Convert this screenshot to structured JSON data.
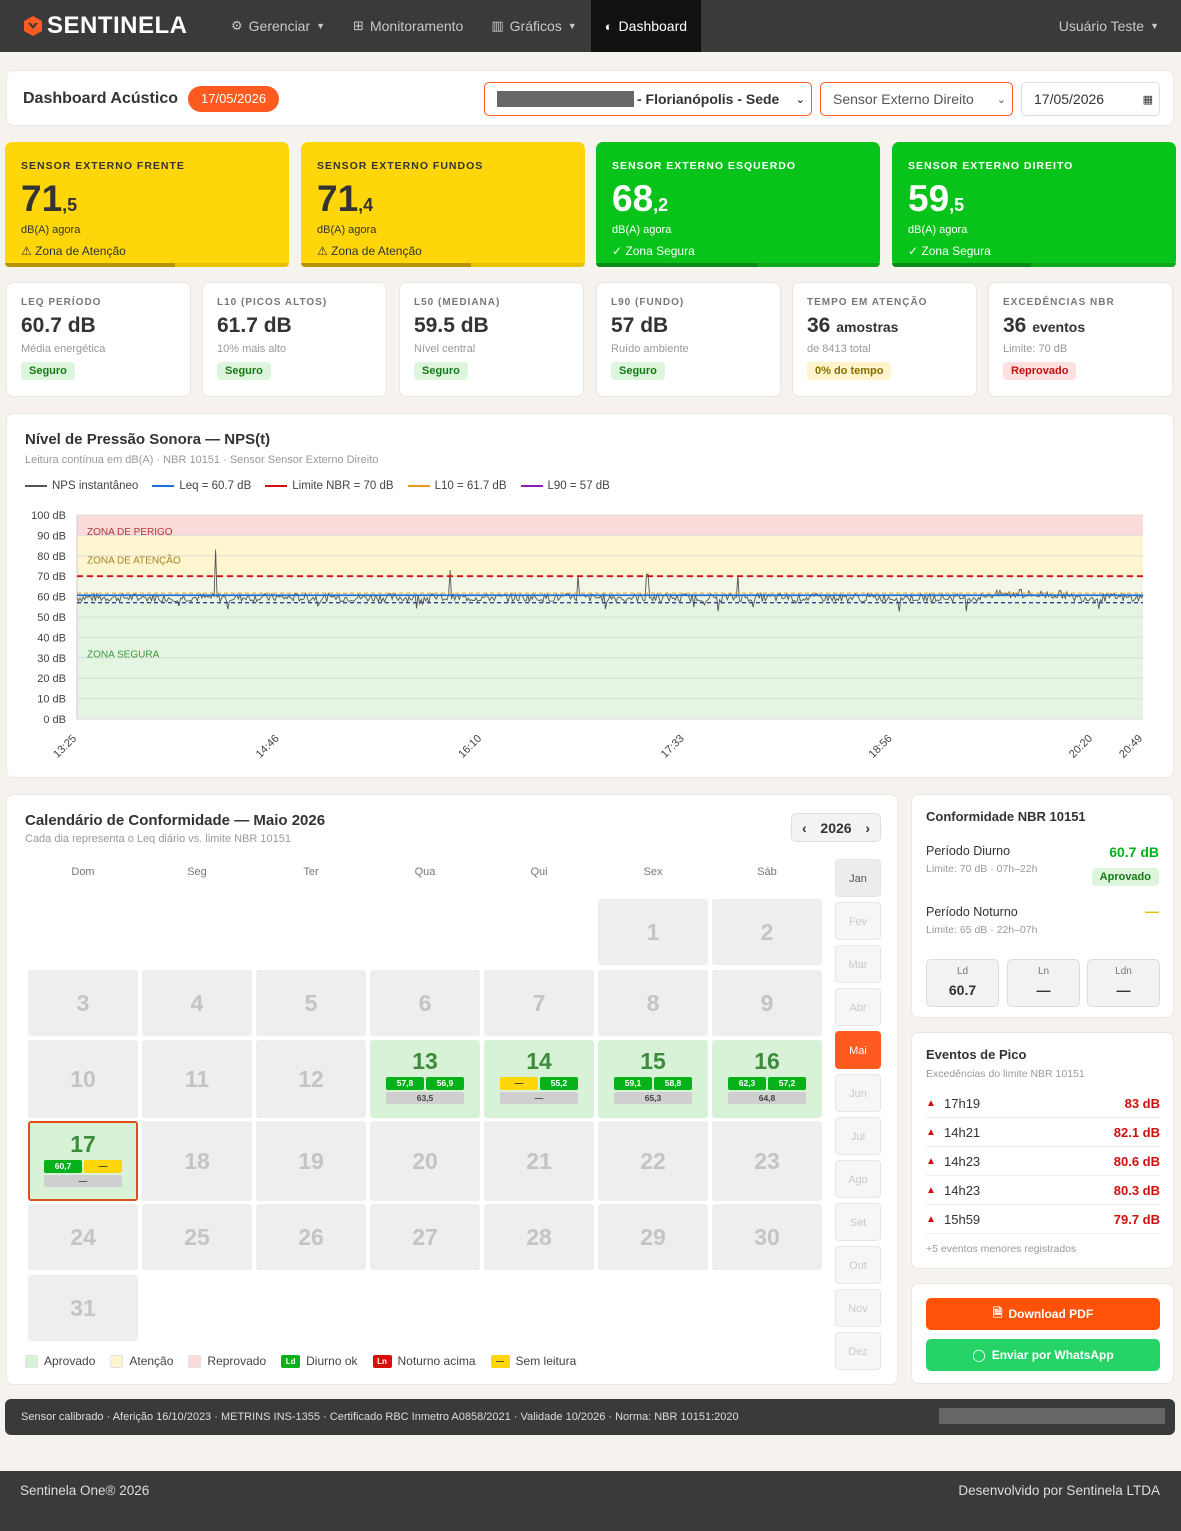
{
  "nav": {
    "brand": "SENTINELA",
    "items": [
      {
        "label": "Gerenciar",
        "icon": "gears-icon",
        "caret": true
      },
      {
        "label": "Monitoramento",
        "icon": "grid-icon",
        "caret": false
      },
      {
        "label": "Gráficos",
        "icon": "bar-chart-icon",
        "caret": true
      },
      {
        "label": "Dashboard",
        "icon": "gauge-icon",
        "caret": false,
        "active": true
      }
    ],
    "user": "Usuário Teste"
  },
  "header": {
    "title": "Dashboard Acústico",
    "date_badge": "17/05/2026",
    "location": "- Florianópolis - Sede",
    "sensor": "Sensor Externo Direito",
    "date": "17/05/2026"
  },
  "sensors": [
    {
      "label": "SENSOR EXTERNO FRENTE",
      "int": "71",
      "dec": ",5",
      "unit": "dB(A) agora",
      "zone": "⚠ Zona de Atenção",
      "color": "yellow",
      "fill": 0.6
    },
    {
      "label": "SENSOR EXTERNO FUNDOS",
      "int": "71",
      "dec": ",4",
      "unit": "dB(A) agora",
      "zone": "⚠ Zona de Atenção",
      "color": "yellow",
      "fill": 0.6
    },
    {
      "label": "SENSOR EXTERNO ESQUERDO",
      "int": "68",
      "dec": ",2",
      "unit": "dB(A) agora",
      "zone": "✓ Zona Segura",
      "color": "green",
      "fill": 0.57
    },
    {
      "label": "SENSOR EXTERNO DIREITO",
      "int": "59",
      "dec": ",5",
      "unit": "dB(A) agora",
      "zone": "✓ Zona Segura",
      "color": "green",
      "fill": 0.49
    }
  ],
  "stats": [
    {
      "label": "LEQ PERÍODO",
      "value": "60.7 dB",
      "small": "",
      "sub": "Média energética",
      "pill": "Seguro",
      "pill_type": "ok"
    },
    {
      "label": "L10 (PICOS ALTOS)",
      "value": "61.7 dB",
      "small": "",
      "sub": "10% mais alto",
      "pill": "Seguro",
      "pill_type": "ok"
    },
    {
      "label": "L50 (MEDIANA)",
      "value": "59.5 dB",
      "small": "",
      "sub": "Nível central",
      "pill": "Seguro",
      "pill_type": "ok"
    },
    {
      "label": "L90 (FUNDO)",
      "value": "57 dB",
      "small": "",
      "sub": "Ruído ambiente",
      "pill": "Seguro",
      "pill_type": "ok"
    },
    {
      "label": "TEMPO EM ATENÇÃO",
      "value": "36",
      "small": "amostras",
      "sub": "de 8413 total",
      "pill": "0% do tempo",
      "pill_type": "warn"
    },
    {
      "label": "EXCEDÊNCIAS NBR",
      "value": "36",
      "small": "eventos",
      "sub": "Limite: 70 dB",
      "pill": "Reprovado",
      "pill_type": "bad"
    }
  ],
  "chart": {
    "title": "Nível de Pressão Sonora — NPS(t)",
    "subtitle": "Leitura contínua em dB(A) · NBR 10151 · Sensor Sensor Externo Direito"
  },
  "chart_data": {
    "type": "line",
    "title": "Nível de Pressão Sonora — NPS(t)",
    "ylim": [
      0,
      100
    ],
    "y_ticks": [
      "0 dB",
      "10 dB",
      "20 dB",
      "30 dB",
      "40 dB",
      "50 dB",
      "60 dB",
      "70 dB",
      "80 dB",
      "90 dB",
      "100 dB"
    ],
    "x_ticks": [
      "13:25",
      "14:46",
      "16:10",
      "17:33",
      "18:56",
      "20:20",
      "20:49"
    ],
    "zones": [
      {
        "name": "ZONA DE PERIGO",
        "from": 90,
        "to": 100,
        "color": "#fbdada"
      },
      {
        "name": "ZONA DE ATENÇÃO",
        "from": 70,
        "to": 90,
        "color": "#fff5cf"
      },
      {
        "name": "ZONA SEGURA",
        "from": 0,
        "to": 60,
        "color": "#e4f5e2"
      }
    ],
    "legend": [
      {
        "name": "NPS instantâneo",
        "color": "#555555"
      },
      {
        "name": "Leq = 60.7 dB",
        "color": "#1a73d9"
      },
      {
        "name": "Limite NBR = 70 dB",
        "color": "#d90f0f"
      },
      {
        "name": "L10 = 61.7 dB",
        "color": "#f09a1a"
      },
      {
        "name": "L90 = 57 dB",
        "color": "#8e1fb5"
      }
    ],
    "leq": 60.7,
    "limit": 70,
    "l10": 61.7,
    "l90": 57,
    "nps_baseline": 59.5,
    "peaks": [
      {
        "t": 0.13,
        "v": 83
      },
      {
        "t": 0.35,
        "v": 73
      },
      {
        "t": 0.47,
        "v": 70.5
      },
      {
        "t": 0.535,
        "v": 71
      },
      {
        "t": 0.62,
        "v": 70.5
      },
      {
        "t": 0.885,
        "v": 63.5
      }
    ]
  },
  "calendar": {
    "title": "Calendário de Conformidade — Maio 2026",
    "subtitle": "Cada dia representa o Leq diário vs. limite NBR 10151",
    "year": "2026",
    "dow": [
      "Dom",
      "Seg",
      "Ter",
      "Qua",
      "Qui",
      "Sex",
      "Sáb"
    ],
    "months": [
      "Jan",
      "Fev",
      "Mar",
      "Abr",
      "Mai",
      "Jun",
      "Jul",
      "Ago",
      "Set",
      "Out",
      "Nov",
      "Dez"
    ],
    "days": {
      "13": {
        "d": "57,8",
        "n": "56,9",
        "ldn": "63,5"
      },
      "14": {
        "d": "—",
        "n": "55,2",
        "ldn": "—"
      },
      "15": {
        "d": "59,1",
        "n": "58,8",
        "ldn": "65,3"
      },
      "16": {
        "d": "62,3",
        "n": "57,2",
        "ldn": "64,8"
      },
      "17": {
        "d": "60,7",
        "n": "—",
        "ldn": "—"
      }
    },
    "legend": [
      {
        "label": "Aprovado",
        "type": "sq",
        "color": "#d8f2d8"
      },
      {
        "label": "Atenção",
        "type": "sq",
        "color": "#fff5cf"
      },
      {
        "label": "Reprovado",
        "type": "sq",
        "color": "#fbdada"
      },
      {
        "label": "Diurno ok",
        "type": "tag",
        "tag": "Ld",
        "color": "#07b11a"
      },
      {
        "label": "Noturno acima",
        "type": "tag",
        "tag": "Ln",
        "color": "#d90f0f"
      },
      {
        "label": "Sem leitura",
        "type": "tag",
        "tag": "—",
        "color": "#ffd60a"
      }
    ]
  },
  "conformity": {
    "title": "Conformidade NBR 10151",
    "diurno": {
      "name": "Período Diurno",
      "limit": "Limite: 70 dB · 07h–22h",
      "value": "60.7 dB",
      "status": "Aprovado"
    },
    "noturno": {
      "name": "Período Noturno",
      "limit": "Limite: 65 dB · 22h–07h",
      "value": "—"
    },
    "indicators": [
      {
        "k": "Ld",
        "v": "60.7"
      },
      {
        "k": "Ln",
        "v": "—"
      },
      {
        "k": "Ldn",
        "v": "—"
      }
    ]
  },
  "peaks": {
    "title": "Eventos de Pico",
    "subtitle": "Excedências do limite NBR 10151",
    "rows": [
      {
        "t": "17h19",
        "v": "83 dB"
      },
      {
        "t": "14h21",
        "v": "82.1 dB"
      },
      {
        "t": "14h23",
        "v": "80.6 dB"
      },
      {
        "t": "14h23",
        "v": "80.3 dB"
      },
      {
        "t": "15h59",
        "v": "79.7 dB"
      }
    ],
    "more": "+5 eventos menores registrados"
  },
  "actions": {
    "pdf": "Download PDF",
    "whatsapp": "Enviar por WhatsApp"
  },
  "calibration": "Sensor calibrado · Aferição 16/10/2023 · METRINS INS-1355 · Certificado RBC Inmetro A0858/2021 · Validade 10/2026 · Norma: NBR 10151:2020",
  "footer": {
    "left": "Sentinela One® 2026",
    "right": "Desenvolvido por Sentinela LTDA"
  }
}
